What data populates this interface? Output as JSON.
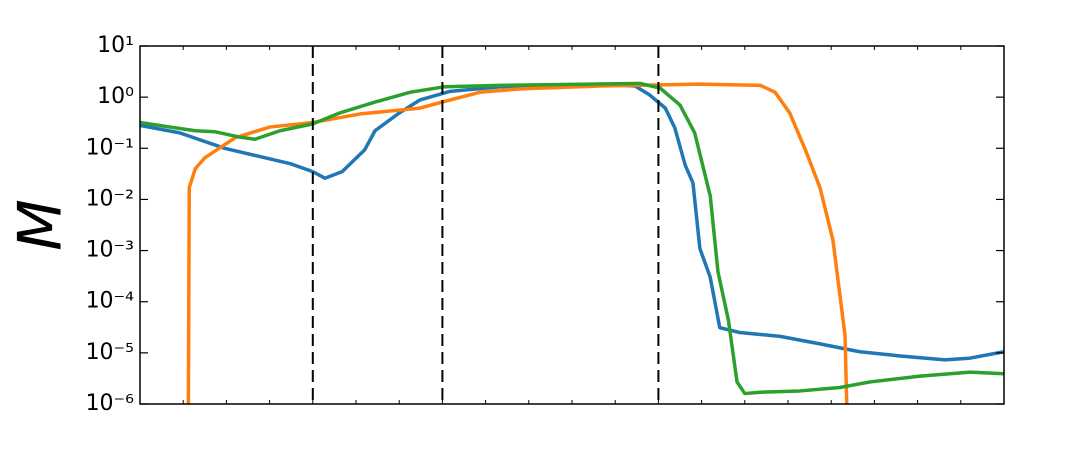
{
  "chart_data": {
    "type": "line",
    "y_label": "M",
    "yscale": "log",
    "xlim": [
      0,
      10
    ],
    "xticks": [
      0,
      0.5,
      1,
      1.5,
      2,
      2.5,
      3,
      3.5,
      4,
      4.5,
      5,
      5.5,
      6,
      6.5,
      7,
      7.5,
      8,
      8.5,
      9,
      9.5,
      10
    ],
    "ylim": [
      1e-06,
      10
    ],
    "yticks": [
      {
        "value": 10,
        "label": "10¹"
      },
      {
        "value": 1,
        "label": "10⁰"
      },
      {
        "value": 0.1,
        "label": "10⁻¹"
      },
      {
        "value": 0.01,
        "label": "10⁻²"
      },
      {
        "value": 0.001,
        "label": "10⁻³"
      },
      {
        "value": 0.0001,
        "label": "10⁻⁴"
      },
      {
        "value": 1e-05,
        "label": "10⁻⁵"
      },
      {
        "value": 1e-06,
        "label": "10⁻⁶"
      }
    ],
    "vlines": [
      2,
      3.5,
      6
    ],
    "vline_color": "#000000",
    "series": [
      {
        "color": "#1f77b4",
        "x": [
          0,
          0.46,
          0.98,
          1.45,
          1.74,
          2.0,
          2.14,
          2.34,
          2.6,
          2.72,
          3.0,
          3.24,
          3.59,
          4.17,
          5.32,
          5.73,
          5.9,
          6.08,
          6.19,
          6.31,
          6.4,
          6.48,
          6.6,
          6.71,
          6.94,
          7.41,
          7.87,
          8.33,
          8.8,
          9.32,
          9.61,
          10
        ],
        "values": [
          0.28,
          0.2,
          0.1,
          0.065,
          0.05,
          0.035,
          0.026,
          0.035,
          0.093,
          0.22,
          0.49,
          0.88,
          1.3,
          1.6,
          1.8,
          1.65,
          1.1,
          0.61,
          0.25,
          0.047,
          0.021,
          0.0011,
          0.0003,
          3.1e-05,
          2.5e-05,
          2.1e-05,
          1.5e-05,
          1.05e-05,
          8.7e-06,
          7.3e-06,
          7.9e-06,
          1.05e-05
        ]
      },
      {
        "color": "#ff7f0e",
        "x": [
          0.56,
          0.57,
          0.64,
          0.75,
          1.1,
          1.5,
          2.0,
          2.55,
          3.24,
          3.59,
          3.94,
          4.4,
          5.32,
          6.48,
          7.18,
          7.35,
          7.52,
          7.7,
          7.87,
          8.02,
          8.16,
          8.18
        ],
        "values": [
          1e-06,
          0.017,
          0.04,
          0.065,
          0.16,
          0.26,
          0.32,
          0.47,
          0.61,
          0.88,
          1.25,
          1.45,
          1.65,
          1.8,
          1.7,
          1.25,
          0.49,
          0.094,
          0.017,
          0.0016,
          2.2e-05,
          1e-06
        ]
      },
      {
        "color": "#2ca02c",
        "x": [
          0,
          0.35,
          0.64,
          0.87,
          1.16,
          1.33,
          1.62,
          2.0,
          2.31,
          2.72,
          3.13,
          3.53,
          4.17,
          5.79,
          6.02,
          6.25,
          6.42,
          6.6,
          6.69,
          6.81,
          6.91,
          7.0,
          7.18,
          7.64,
          8.1,
          8.45,
          9.03,
          9.61,
          10
        ],
        "values": [
          0.32,
          0.26,
          0.22,
          0.21,
          0.165,
          0.15,
          0.22,
          0.3,
          0.49,
          0.8,
          1.25,
          1.6,
          1.7,
          1.85,
          1.5,
          0.7,
          0.2,
          0.0117,
          0.00038,
          4.4e-05,
          2.7e-06,
          1.6e-06,
          1.7e-06,
          1.8e-06,
          2.1e-06,
          2.7e-06,
          3.5e-06,
          4.2e-06,
          3.9e-06
        ]
      }
    ]
  }
}
